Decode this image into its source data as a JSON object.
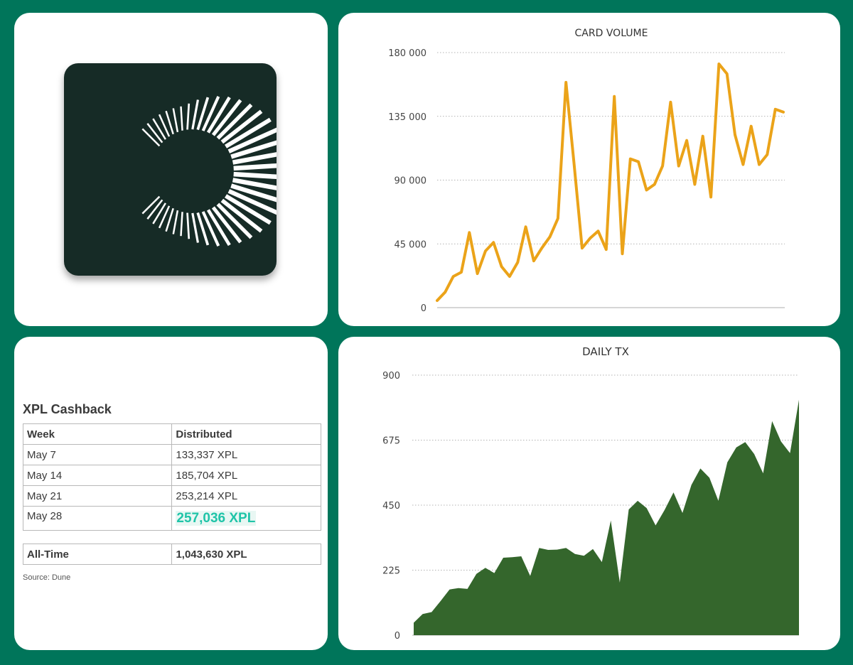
{
  "cashback": {
    "title": "XPL Cashback",
    "headers": [
      "Week",
      "Distributed"
    ],
    "rows": [
      {
        "week": "May 7",
        "value": "133,337 XPL"
      },
      {
        "week": "May 14",
        "value": "185,704 XPL"
      },
      {
        "week": "May 21",
        "value": "253,214 XPL"
      },
      {
        "week": "May 28",
        "value": "257,036 XPL"
      }
    ],
    "total_label": "All-Time",
    "total_value": "1,043,630 XPL",
    "source": "Source: Dune"
  },
  "colors": {
    "background": "#00755a",
    "volume_line": "#eba319",
    "tx_area": "#34662c",
    "highlight_text": "#1fc4a8",
    "logo_tile": "#162b26"
  },
  "chart_data": [
    {
      "type": "line",
      "title": "CARD VOLUME",
      "xlabel": "",
      "ylabel": "",
      "ylim": [
        0,
        180000
      ],
      "yticks": [
        0,
        45000,
        90000,
        135000,
        180000
      ],
      "ytick_labels": [
        "0",
        "45 000",
        "90 000",
        "135 000",
        "180 000"
      ],
      "grid": true,
      "legend": "none",
      "series": [
        {
          "values": [
            5000,
            11000,
            22000,
            25000,
            53000,
            24000,
            40000,
            46000,
            29000,
            22000,
            32000,
            57000,
            33000,
            42000,
            50000,
            63000,
            159000,
            102000,
            42000,
            49000,
            54000,
            41000,
            149000,
            38000,
            105000,
            103000,
            83000,
            87000,
            100000,
            145000,
            100000,
            118000,
            87000,
            121000,
            78000,
            172000,
            165000,
            122000,
            101000,
            128000,
            101000,
            108000,
            140000,
            138000
          ]
        }
      ]
    },
    {
      "type": "area",
      "title": "DAILY TX",
      "xlabel": "",
      "ylabel": "",
      "ylim": [
        0,
        900
      ],
      "yticks": [
        0,
        225,
        450,
        675,
        900
      ],
      "ytick_labels": [
        "0",
        "225",
        "450",
        "675",
        "900"
      ],
      "grid": true,
      "legend": "none",
      "series": [
        {
          "values": [
            43,
            73,
            80,
            118,
            158,
            163,
            160,
            212,
            233,
            215,
            268,
            270,
            273,
            205,
            302,
            295,
            296,
            302,
            281,
            275,
            298,
            253,
            397,
            182,
            435,
            465,
            440,
            380,
            433,
            494,
            423,
            520,
            577,
            545,
            465,
            598,
            650,
            668,
            627,
            560,
            741,
            670,
            630,
            815
          ]
        }
      ]
    }
  ]
}
